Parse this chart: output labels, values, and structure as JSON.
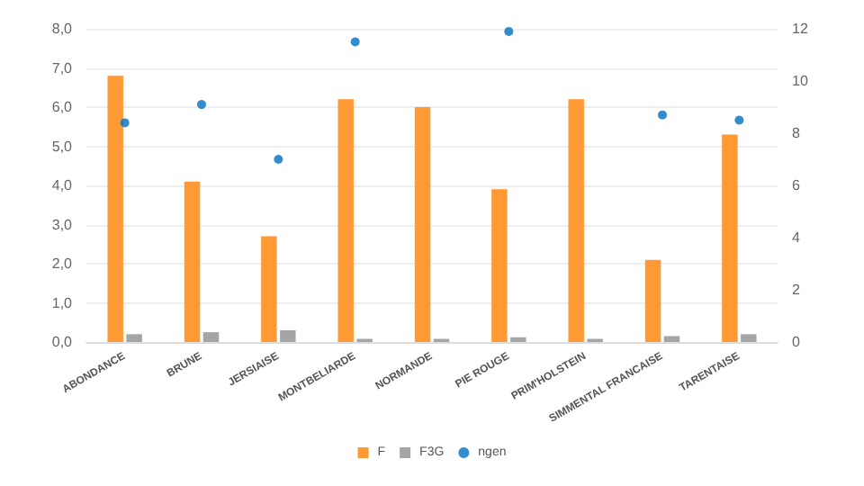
{
  "chart_data": {
    "type": "bar",
    "categories": [
      "ABONDANCE",
      "BRUNE",
      "JERSIAISE",
      "MONTBELIARDE",
      "NORMANDE",
      "PIE ROUGE",
      "PRIM'HOLSTEIN",
      "SIMMENTAL FRANCAISE",
      "TARENTAISE"
    ],
    "series": [
      {
        "name": "F",
        "color": "#ff9933",
        "values": [
          6.8,
          4.1,
          2.7,
          6.2,
          6.0,
          3.9,
          6.2,
          2.1,
          5.3
        ]
      },
      {
        "name": "F3G",
        "color": "#a5a5a5",
        "values": [
          0.2,
          0.25,
          0.3,
          0.08,
          0.08,
          0.12,
          0.08,
          0.15,
          0.2
        ]
      },
      {
        "name": "ngen",
        "type": "scatter",
        "axis": "y2",
        "color": "#0070c0",
        "values": [
          8.4,
          9.1,
          7.0,
          11.5,
          null,
          11.9,
          null,
          8.7,
          8.5
        ]
      }
    ],
    "ylim": [
      0,
      8
    ],
    "yticks": [
      {
        "value": 0,
        "label": "0,0"
      },
      {
        "value": 1,
        "label": "1,0"
      },
      {
        "value": 2,
        "label": "2,0"
      },
      {
        "value": 3,
        "label": "3,0"
      },
      {
        "value": 4,
        "label": "4,0"
      },
      {
        "value": 5,
        "label": "5,0"
      },
      {
        "value": 6,
        "label": "6,0"
      },
      {
        "value": 7,
        "label": "7,0"
      },
      {
        "value": 8,
        "label": "8,0"
      }
    ],
    "y2lim": [
      0,
      12
    ],
    "y2ticks": [
      0,
      2,
      4,
      6,
      8,
      10,
      12
    ],
    "grid": "y",
    "legend": "bottom",
    "marker": "circle"
  }
}
